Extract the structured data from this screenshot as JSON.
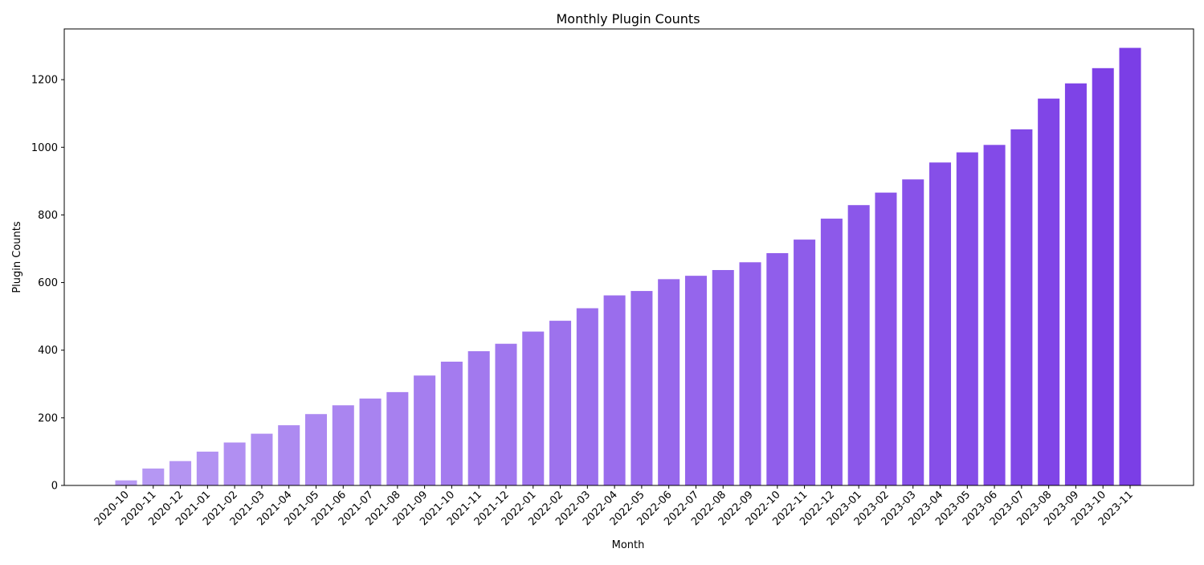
{
  "chart_data": {
    "type": "bar",
    "title": "Monthly Plugin Counts",
    "xlabel": "Month",
    "ylabel": "Plugin Counts",
    "ylim": [
      0,
      1350
    ],
    "yticks": [
      0,
      200,
      400,
      600,
      800,
      1000,
      1200
    ],
    "grid": false,
    "legend": "none",
    "color_light": "#b799f3",
    "color_dark": "#7b3ee6",
    "categories": [
      "2020-10",
      "2020-11",
      "2020-12",
      "2021-01",
      "2021-02",
      "2021-03",
      "2021-04",
      "2021-05",
      "2021-06",
      "2021-07",
      "2021-08",
      "2021-09",
      "2021-10",
      "2021-11",
      "2021-12",
      "2022-01",
      "2022-02",
      "2022-03",
      "2022-04",
      "2022-05",
      "2022-06",
      "2022-07",
      "2022-08",
      "2022-09",
      "2022-10",
      "2022-11",
      "2022-12",
      "2023-01",
      "2023-02",
      "2023-03",
      "2023-04",
      "2023-05",
      "2023-06",
      "2023-07",
      "2023-08",
      "2023-09",
      "2023-10",
      "2023-11"
    ],
    "values": [
      15,
      50,
      72,
      100,
      127,
      153,
      178,
      211,
      237,
      257,
      276,
      325,
      366,
      397,
      419,
      455,
      487,
      524,
      562,
      575,
      610,
      620,
      637,
      660,
      687,
      727,
      789,
      829,
      866,
      905,
      955,
      985,
      1007,
      1053,
      1144,
      1189,
      1234,
      1294
    ]
  }
}
